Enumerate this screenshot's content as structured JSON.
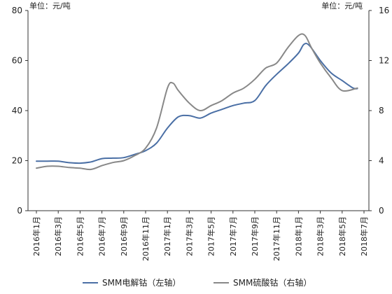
{
  "chart_data": {
    "type": "line",
    "unit_left": "单位：元/吨",
    "unit_right": "单位：元/吨",
    "x_categories": [
      "2016年1月",
      "2016年3月",
      "2016年5月",
      "2016年7月",
      "2016年9月",
      "2016年11月",
      "2017年1月",
      "2017年3月",
      "2017年5月",
      "2017年7月",
      "2017年9月",
      "2017年11月",
      "2018年1月",
      "2018年3月",
      "2018年5月",
      "2018年7月"
    ],
    "y_left": {
      "ticks": [
        0,
        20,
        40,
        60,
        80
      ],
      "range": [
        0,
        80
      ]
    },
    "y_right": {
      "ticks": [
        0,
        4,
        8,
        12,
        16
      ],
      "range": [
        0,
        16
      ]
    },
    "grid": false,
    "legend_position": "bottom",
    "series": [
      {
        "name": "SMM电解钴（左轴）",
        "axis": "left",
        "color": "#4a6fa5",
        "values": [
          [
            0,
            19.8
          ],
          [
            0.5,
            19.8
          ],
          [
            1,
            19.8
          ],
          [
            1.5,
            19.2
          ],
          [
            2,
            19.0
          ],
          [
            2.5,
            19.5
          ],
          [
            3,
            20.8
          ],
          [
            3.5,
            21.0
          ],
          [
            4,
            21.2
          ],
          [
            4.5,
            22.5
          ],
          [
            5,
            24.0
          ],
          [
            5.5,
            27.0
          ],
          [
            6,
            33.0
          ],
          [
            6.5,
            37.5
          ],
          [
            7,
            38.0
          ],
          [
            7.5,
            37.0
          ],
          [
            8,
            39.0
          ],
          [
            8.5,
            40.5
          ],
          [
            9,
            42.0
          ],
          [
            9.5,
            43.0
          ],
          [
            10,
            44.0
          ],
          [
            10.5,
            50.0
          ],
          [
            11,
            54.5
          ],
          [
            11.5,
            58.5
          ],
          [
            12,
            63.0
          ],
          [
            12.25,
            66.5
          ],
          [
            12.5,
            66.0
          ],
          [
            13,
            60.0
          ],
          [
            13.5,
            55.0
          ],
          [
            14,
            52.0
          ],
          [
            14.5,
            49.0
          ],
          [
            14.7,
            48.8
          ]
        ]
      },
      {
        "name": "SMM硫酸钴（右轴）",
        "axis": "right",
        "color": "#888888",
        "values": [
          [
            0,
            3.4
          ],
          [
            0.5,
            3.55
          ],
          [
            1,
            3.55
          ],
          [
            1.5,
            3.45
          ],
          [
            2,
            3.4
          ],
          [
            2.5,
            3.3
          ],
          [
            3,
            3.6
          ],
          [
            3.5,
            3.85
          ],
          [
            4,
            4.0
          ],
          [
            4.5,
            4.4
          ],
          [
            5,
            5.0
          ],
          [
            5.5,
            6.6
          ],
          [
            6,
            9.8
          ],
          [
            6.25,
            10.2
          ],
          [
            6.5,
            9.6
          ],
          [
            7,
            8.6
          ],
          [
            7.5,
            8.0
          ],
          [
            8,
            8.4
          ],
          [
            8.5,
            8.8
          ],
          [
            9,
            9.4
          ],
          [
            9.5,
            9.8
          ],
          [
            10,
            10.5
          ],
          [
            10.5,
            11.4
          ],
          [
            11,
            11.8
          ],
          [
            11.5,
            13.0
          ],
          [
            12,
            14.0
          ],
          [
            12.3,
            14.0
          ],
          [
            12.6,
            13.0
          ],
          [
            13,
            11.8
          ],
          [
            13.5,
            10.6
          ],
          [
            14,
            9.6
          ],
          [
            14.7,
            9.8
          ]
        ]
      }
    ]
  }
}
